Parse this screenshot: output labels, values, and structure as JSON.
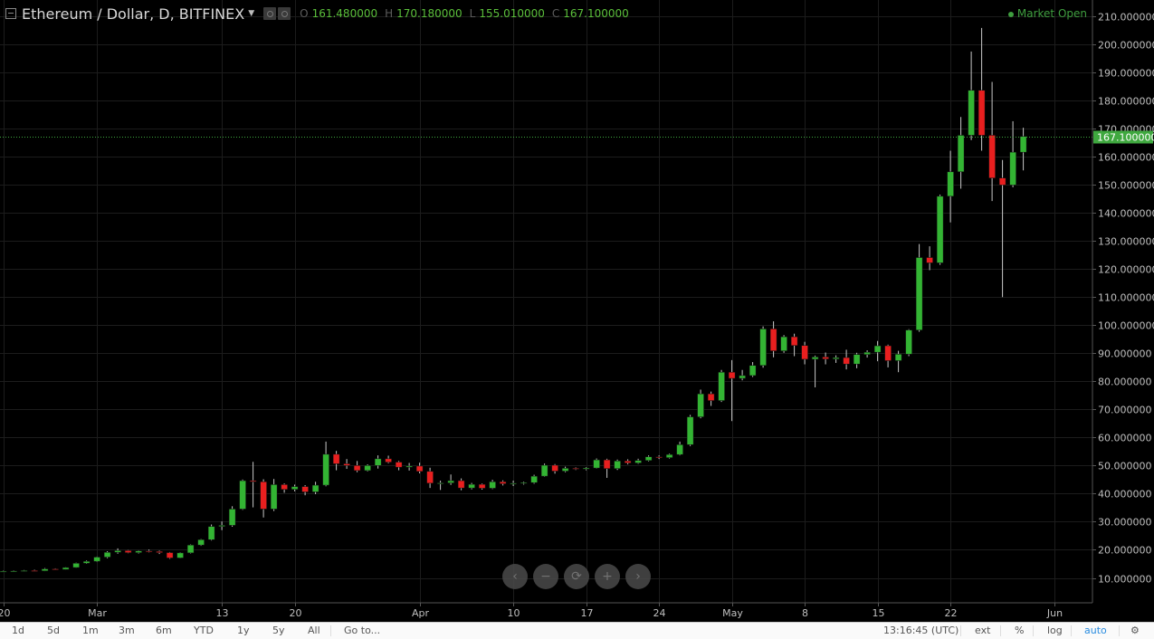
{
  "header": {
    "symbol": "Ethereum / Dollar, D, BITFINEX",
    "open_label": "O",
    "open": "161.480000",
    "high_label": "H",
    "high": "170.180000",
    "low_label": "L",
    "low": "155.010000",
    "close_label": "C",
    "close": "167.100000",
    "market_status": "Market Open"
  },
  "price_tag": "167.100000",
  "nav_buttons": [
    "‹",
    "−",
    "⟳",
    "+",
    "›"
  ],
  "bottom_bar": {
    "ranges": [
      "1d",
      "5d",
      "1m",
      "3m",
      "6m",
      "YTD",
      "1y",
      "5y",
      "All"
    ],
    "goto": "Go to...",
    "time": "13:16:45 (UTC)",
    "ext": "ext",
    "percent": "%",
    "log": "log",
    "auto": "auto"
  },
  "colors": {
    "up": "#33b433",
    "down": "#e81f1f",
    "background": "#000000",
    "grid": "#1c1c1c",
    "last_price": "#3fa83f"
  },
  "chart_data": {
    "type": "candlestick",
    "title": "Ethereum / Dollar, D, BITFINEX",
    "ylim": [
      0,
      215
    ],
    "grid": true,
    "y_ticks": [
      "10.000000",
      "20.000000",
      "30.000000",
      "40.000000",
      "50.000000",
      "60.000000",
      "70.000000",
      "80.000000",
      "90.000000",
      "100.000000",
      "110.000000",
      "120.000000",
      "130.000000",
      "140.000000",
      "150.000000",
      "160.000000",
      "170.000000",
      "180.000000",
      "190.000000",
      "200.000000",
      "210.000000"
    ],
    "y_tick_values": [
      10,
      20,
      30,
      40,
      50,
      60,
      70,
      80,
      90,
      100,
      110,
      120,
      130,
      140,
      150,
      160,
      170,
      180,
      190,
      200,
      210
    ],
    "x_ticks": [
      {
        "label": "20",
        "date": "2017-02-20"
      },
      {
        "label": "Mar",
        "date": "2017-03-01"
      },
      {
        "label": "13",
        "date": "2017-03-13"
      },
      {
        "label": "20",
        "date": "2017-03-20"
      },
      {
        "label": "Apr",
        "date": "2017-04-01"
      },
      {
        "label": "10",
        "date": "2017-04-10"
      },
      {
        "label": "17",
        "date": "2017-04-17"
      },
      {
        "label": "24",
        "date": "2017-04-24"
      },
      {
        "label": "May",
        "date": "2017-05-01"
      },
      {
        "label": "8",
        "date": "2017-05-08"
      },
      {
        "label": "15",
        "date": "2017-05-15"
      },
      {
        "label": "22",
        "date": "2017-05-22"
      },
      {
        "label": "Jun",
        "date": "2017-06-01"
      }
    ],
    "last_price": 167.1,
    "candles": [
      {
        "d": "2017-02-20",
        "o": 12.3,
        "h": 12.6,
        "l": 12.1,
        "c": 12.4
      },
      {
        "d": "2017-02-21",
        "o": 12.4,
        "h": 12.7,
        "l": 12.2,
        "c": 12.5
      },
      {
        "d": "2017-02-22",
        "o": 12.5,
        "h": 12.8,
        "l": 12.3,
        "c": 12.6
      },
      {
        "d": "2017-02-23",
        "o": 12.6,
        "h": 12.9,
        "l": 12.3,
        "c": 12.5
      },
      {
        "d": "2017-02-24",
        "o": 12.5,
        "h": 13.5,
        "l": 12.4,
        "c": 13.2
      },
      {
        "d": "2017-02-25",
        "o": 13.2,
        "h": 13.4,
        "l": 12.9,
        "c": 13.0
      },
      {
        "d": "2017-02-26",
        "o": 13.0,
        "h": 13.8,
        "l": 12.9,
        "c": 13.7
      },
      {
        "d": "2017-02-27",
        "o": 13.7,
        "h": 15.4,
        "l": 13.6,
        "c": 15.2
      },
      {
        "d": "2017-02-28",
        "o": 15.2,
        "h": 16.2,
        "l": 15.0,
        "c": 15.9
      },
      {
        "d": "2017-03-01",
        "o": 15.9,
        "h": 17.6,
        "l": 15.7,
        "c": 17.4
      },
      {
        "d": "2017-03-02",
        "o": 17.4,
        "h": 19.5,
        "l": 17.0,
        "c": 19.1
      },
      {
        "d": "2017-03-03",
        "o": 19.1,
        "h": 20.5,
        "l": 18.6,
        "c": 19.7
      },
      {
        "d": "2017-03-04",
        "o": 19.7,
        "h": 19.9,
        "l": 18.8,
        "c": 19.0
      },
      {
        "d": "2017-03-05",
        "o": 19.0,
        "h": 19.8,
        "l": 18.7,
        "c": 19.6
      },
      {
        "d": "2017-03-06",
        "o": 19.6,
        "h": 20.1,
        "l": 19.1,
        "c": 19.4
      },
      {
        "d": "2017-03-07",
        "o": 19.4,
        "h": 19.7,
        "l": 18.5,
        "c": 19.0
      },
      {
        "d": "2017-03-08",
        "o": 19.0,
        "h": 19.2,
        "l": 16.8,
        "c": 17.1
      },
      {
        "d": "2017-03-09",
        "o": 17.1,
        "h": 19.1,
        "l": 17.0,
        "c": 18.9
      },
      {
        "d": "2017-03-10",
        "o": 18.9,
        "h": 21.9,
        "l": 18.7,
        "c": 21.7
      },
      {
        "d": "2017-03-11",
        "o": 21.7,
        "h": 23.8,
        "l": 21.4,
        "c": 23.6
      },
      {
        "d": "2017-03-12",
        "o": 23.6,
        "h": 29.0,
        "l": 23.3,
        "c": 28.3
      },
      {
        "d": "2017-03-13",
        "o": 28.3,
        "h": 30.1,
        "l": 27.0,
        "c": 28.7
      },
      {
        "d": "2017-03-14",
        "o": 28.7,
        "h": 35.5,
        "l": 28.2,
        "c": 34.5
      },
      {
        "d": "2017-03-15",
        "o": 34.5,
        "h": 45.0,
        "l": 34.2,
        "c": 44.6
      },
      {
        "d": "2017-03-16",
        "o": 44.6,
        "h": 51.3,
        "l": 35.1,
        "c": 44.2
      },
      {
        "d": "2017-03-17",
        "o": 44.2,
        "h": 45.1,
        "l": 31.5,
        "c": 34.5
      },
      {
        "d": "2017-03-18",
        "o": 34.5,
        "h": 45.2,
        "l": 33.8,
        "c": 43.2
      },
      {
        "d": "2017-03-19",
        "o": 43.2,
        "h": 43.6,
        "l": 40.3,
        "c": 41.5
      },
      {
        "d": "2017-03-20",
        "o": 41.5,
        "h": 43.2,
        "l": 40.8,
        "c": 42.5
      },
      {
        "d": "2017-03-21",
        "o": 42.5,
        "h": 43.0,
        "l": 39.4,
        "c": 40.6
      },
      {
        "d": "2017-03-22",
        "o": 40.6,
        "h": 44.2,
        "l": 39.8,
        "c": 43.0
      },
      {
        "d": "2017-03-23",
        "o": 43.0,
        "h": 58.5,
        "l": 42.6,
        "c": 54.0
      },
      {
        "d": "2017-03-24",
        "o": 54.0,
        "h": 55.2,
        "l": 48.3,
        "c": 50.6
      },
      {
        "d": "2017-03-25",
        "o": 50.6,
        "h": 52.3,
        "l": 48.8,
        "c": 50.0
      },
      {
        "d": "2017-03-26",
        "o": 50.0,
        "h": 51.6,
        "l": 47.6,
        "c": 48.2
      },
      {
        "d": "2017-03-27",
        "o": 48.2,
        "h": 50.4,
        "l": 47.9,
        "c": 50.0
      },
      {
        "d": "2017-03-28",
        "o": 50.0,
        "h": 53.6,
        "l": 48.9,
        "c": 52.4
      },
      {
        "d": "2017-03-29",
        "o": 52.4,
        "h": 53.5,
        "l": 50.8,
        "c": 51.2
      },
      {
        "d": "2017-03-30",
        "o": 51.2,
        "h": 51.6,
        "l": 48.3,
        "c": 49.4
      },
      {
        "d": "2017-03-31",
        "o": 49.4,
        "h": 50.9,
        "l": 48.2,
        "c": 49.8
      },
      {
        "d": "2017-04-01",
        "o": 49.8,
        "h": 51.0,
        "l": 47.2,
        "c": 47.9
      },
      {
        "d": "2017-04-02",
        "o": 47.9,
        "h": 49.2,
        "l": 42.0,
        "c": 43.7
      },
      {
        "d": "2017-04-03",
        "o": 43.7,
        "h": 44.6,
        "l": 41.3,
        "c": 43.8
      },
      {
        "d": "2017-04-04",
        "o": 43.8,
        "h": 46.8,
        "l": 43.1,
        "c": 44.6
      },
      {
        "d": "2017-04-05",
        "o": 44.6,
        "h": 45.4,
        "l": 41.2,
        "c": 42.0
      },
      {
        "d": "2017-04-06",
        "o": 42.0,
        "h": 43.8,
        "l": 41.5,
        "c": 43.3
      },
      {
        "d": "2017-04-07",
        "o": 43.3,
        "h": 43.6,
        "l": 41.4,
        "c": 41.9
      },
      {
        "d": "2017-04-08",
        "o": 41.9,
        "h": 44.9,
        "l": 41.6,
        "c": 44.2
      },
      {
        "d": "2017-04-09",
        "o": 44.2,
        "h": 44.7,
        "l": 42.9,
        "c": 43.5
      },
      {
        "d": "2017-04-10",
        "o": 43.5,
        "h": 44.6,
        "l": 42.7,
        "c": 43.7
      },
      {
        "d": "2017-04-11",
        "o": 43.7,
        "h": 44.2,
        "l": 43.2,
        "c": 43.9
      },
      {
        "d": "2017-04-12",
        "o": 43.9,
        "h": 46.7,
        "l": 43.5,
        "c": 46.2
      },
      {
        "d": "2017-04-13",
        "o": 46.2,
        "h": 50.7,
        "l": 46.0,
        "c": 50.1
      },
      {
        "d": "2017-04-14",
        "o": 50.1,
        "h": 50.5,
        "l": 47.1,
        "c": 48.0
      },
      {
        "d": "2017-04-15",
        "o": 48.0,
        "h": 49.6,
        "l": 47.6,
        "c": 49.0
      },
      {
        "d": "2017-04-16",
        "o": 49.0,
        "h": 49.3,
        "l": 48.4,
        "c": 48.7
      },
      {
        "d": "2017-04-17",
        "o": 48.7,
        "h": 49.4,
        "l": 48.3,
        "c": 49.1
      },
      {
        "d": "2017-04-18",
        "o": 49.1,
        "h": 52.5,
        "l": 48.9,
        "c": 52.0
      },
      {
        "d": "2017-04-19",
        "o": 52.0,
        "h": 52.4,
        "l": 45.6,
        "c": 48.9
      },
      {
        "d": "2017-04-20",
        "o": 48.9,
        "h": 52.1,
        "l": 48.4,
        "c": 51.6
      },
      {
        "d": "2017-04-21",
        "o": 51.6,
        "h": 52.2,
        "l": 50.4,
        "c": 50.9
      },
      {
        "d": "2017-04-22",
        "o": 50.9,
        "h": 52.4,
        "l": 50.6,
        "c": 51.8
      },
      {
        "d": "2017-04-23",
        "o": 51.8,
        "h": 53.6,
        "l": 51.5,
        "c": 53.1
      },
      {
        "d": "2017-04-24",
        "o": 53.1,
        "h": 53.6,
        "l": 52.3,
        "c": 52.8
      },
      {
        "d": "2017-04-25",
        "o": 52.8,
        "h": 54.2,
        "l": 52.5,
        "c": 53.9
      },
      {
        "d": "2017-04-26",
        "o": 53.9,
        "h": 58.5,
        "l": 53.6,
        "c": 57.4
      },
      {
        "d": "2017-04-27",
        "o": 57.4,
        "h": 68.0,
        "l": 56.9,
        "c": 67.3
      },
      {
        "d": "2017-04-28",
        "o": 67.3,
        "h": 77.0,
        "l": 66.8,
        "c": 75.5
      },
      {
        "d": "2017-04-29",
        "o": 75.5,
        "h": 76.3,
        "l": 71.2,
        "c": 73.1
      },
      {
        "d": "2017-04-30",
        "o": 73.1,
        "h": 84.0,
        "l": 72.6,
        "c": 83.2
      },
      {
        "d": "2017-05-01",
        "o": 83.2,
        "h": 87.5,
        "l": 65.8,
        "c": 81.0
      },
      {
        "d": "2017-05-02",
        "o": 81.0,
        "h": 84.0,
        "l": 80.3,
        "c": 82.0
      },
      {
        "d": "2017-05-03",
        "o": 82.0,
        "h": 86.8,
        "l": 81.5,
        "c": 85.6
      },
      {
        "d": "2017-05-04",
        "o": 85.6,
        "h": 99.5,
        "l": 84.8,
        "c": 98.6
      },
      {
        "d": "2017-05-05",
        "o": 98.6,
        "h": 101.3,
        "l": 88.5,
        "c": 90.8
      },
      {
        "d": "2017-05-06",
        "o": 90.8,
        "h": 96.4,
        "l": 90.1,
        "c": 95.8
      },
      {
        "d": "2017-05-07",
        "o": 95.8,
        "h": 96.9,
        "l": 88.9,
        "c": 92.7
      },
      {
        "d": "2017-05-08",
        "o": 92.7,
        "h": 94.0,
        "l": 86.0,
        "c": 87.8
      },
      {
        "d": "2017-05-09",
        "o": 87.8,
        "h": 89.1,
        "l": 77.8,
        "c": 88.6
      },
      {
        "d": "2017-05-10",
        "o": 88.6,
        "h": 90.2,
        "l": 86.0,
        "c": 87.9
      },
      {
        "d": "2017-05-11",
        "o": 87.9,
        "h": 89.2,
        "l": 86.5,
        "c": 88.4
      },
      {
        "d": "2017-05-12",
        "o": 88.4,
        "h": 91.2,
        "l": 84.2,
        "c": 86.1
      },
      {
        "d": "2017-05-13",
        "o": 86.1,
        "h": 90.1,
        "l": 84.6,
        "c": 89.5
      },
      {
        "d": "2017-05-14",
        "o": 89.5,
        "h": 91.0,
        "l": 88.4,
        "c": 90.3
      },
      {
        "d": "2017-05-15",
        "o": 90.3,
        "h": 94.3,
        "l": 87.1,
        "c": 92.6
      },
      {
        "d": "2017-05-16",
        "o": 92.6,
        "h": 93.0,
        "l": 84.9,
        "c": 87.3
      },
      {
        "d": "2017-05-17",
        "o": 87.3,
        "h": 90.8,
        "l": 83.2,
        "c": 89.6
      },
      {
        "d": "2017-05-18",
        "o": 89.6,
        "h": 98.5,
        "l": 88.9,
        "c": 98.2
      },
      {
        "d": "2017-05-19",
        "o": 98.2,
        "h": 128.8,
        "l": 97.6,
        "c": 124.0
      },
      {
        "d": "2017-05-20",
        "o": 124.0,
        "h": 128.0,
        "l": 119.5,
        "c": 122.1
      },
      {
        "d": "2017-05-21",
        "o": 122.1,
        "h": 146.4,
        "l": 121.4,
        "c": 145.8
      },
      {
        "d": "2017-05-22",
        "o": 145.8,
        "h": 162.0,
        "l": 136.5,
        "c": 154.5
      },
      {
        "d": "2017-05-23",
        "o": 154.5,
        "h": 174.0,
        "l": 148.5,
        "c": 167.5
      },
      {
        "d": "2017-05-24",
        "o": 167.5,
        "h": 197.3,
        "l": 165.8,
        "c": 183.5
      },
      {
        "d": "2017-05-25",
        "o": 183.5,
        "h": 205.7,
        "l": 162.0,
        "c": 167.5
      },
      {
        "d": "2017-05-26",
        "o": 167.5,
        "h": 186.5,
        "l": 144.1,
        "c": 152.3
      },
      {
        "d": "2017-05-27",
        "o": 152.3,
        "h": 158.7,
        "l": 109.9,
        "c": 149.8
      },
      {
        "d": "2017-05-28",
        "o": 149.8,
        "h": 172.5,
        "l": 149.0,
        "c": 161.5
      },
      {
        "d": "2017-05-29",
        "o": 161.48,
        "h": 170.18,
        "l": 155.01,
        "c": 167.1
      }
    ]
  }
}
